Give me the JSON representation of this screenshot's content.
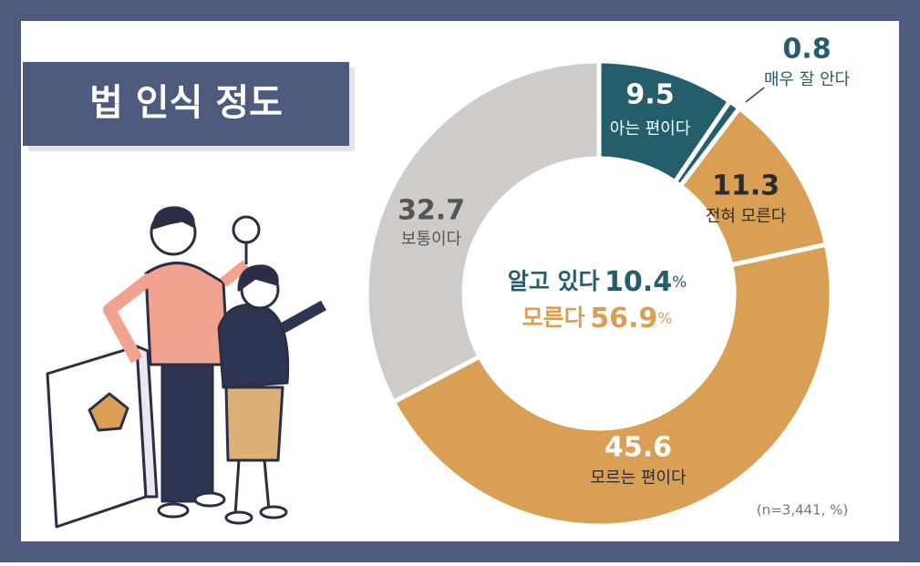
{
  "chart_data": {
    "type": "donut",
    "title": "법 인식 정도",
    "categories": [
      "아는 편이다",
      "매우 잘 안다",
      "전혀 모른다",
      "모르는 편이다",
      "보통이다"
    ],
    "values": [
      9.5,
      0.8,
      11.3,
      45.6,
      32.7
    ],
    "colors": [
      "#245e6b",
      "#245e6b",
      "#d9a055",
      "#d9a055",
      "#cfcbc9"
    ],
    "center_labels": [
      {
        "label": "알고 있다",
        "value": 10.4,
        "unit": "%"
      },
      {
        "label": "모른다",
        "value": 56.9,
        "unit": "%"
      }
    ],
    "note": "(n=3,441, %)"
  }
}
